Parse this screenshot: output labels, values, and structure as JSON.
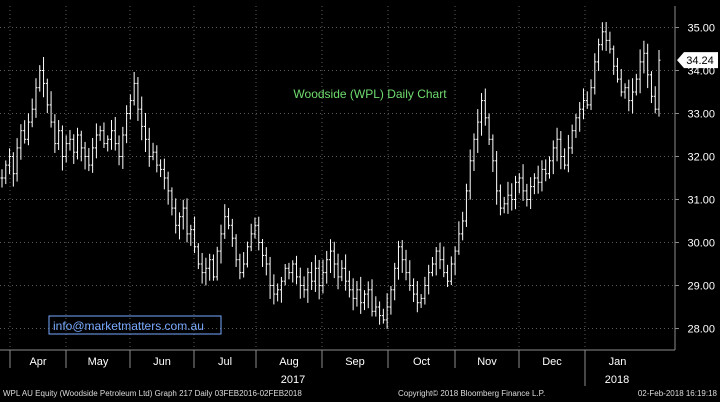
{
  "chart_data": {
    "type": "ohlc",
    "title": "Woodside (WPL) Daily Chart",
    "watermark": "info@marketmatters.com.au",
    "last_price_label": "34.24",
    "last_price": 34.24,
    "ylim": [
      27.5,
      35.5
    ],
    "y_ticks": [
      28.0,
      29.0,
      30.0,
      31.0,
      32.0,
      33.0,
      34.0,
      35.0
    ],
    "y_tick_labels": [
      "28.00",
      "29.00",
      "30.00",
      "31.00",
      "32.00",
      "33.00",
      "34.00",
      "35.00"
    ],
    "month_labels": [
      "Apr",
      "May",
      "Jun",
      "Jul",
      "Aug",
      "Sep",
      "Oct",
      "Nov",
      "Dec",
      "Jan"
    ],
    "year_labels": [
      "2017",
      "2018"
    ],
    "grid": true,
    "colors": {
      "background": "#000000",
      "bars": "#ffffff",
      "grid": "#5a5a5a",
      "title": "#6fdc6f",
      "watermark": "#79a9ff",
      "axis": "#8c8c8c"
    },
    "x_note": "one bar per trading day, late Mar 2017 to 2 Feb 2018",
    "closes": [
      31.5,
      31.8,
      32.0,
      31.6,
      32.2,
      32.6,
      32.4,
      32.8,
      33.1,
      33.6,
      34.0,
      33.7,
      33.2,
      32.8,
      32.3,
      32.6,
      32.0,
      32.3,
      32.4,
      32.1,
      32.5,
      32.2,
      32.0,
      31.8,
      32.2,
      32.5,
      32.6,
      32.3,
      32.4,
      32.6,
      32.3,
      32.0,
      32.5,
      33.0,
      33.3,
      33.7,
      33.1,
      32.7,
      32.4,
      32.0,
      32.1,
      31.8,
      31.7,
      31.5,
      31.2,
      30.8,
      30.4,
      30.6,
      30.8,
      30.2,
      30.3,
      29.9,
      29.5,
      29.3,
      29.4,
      29.6,
      29.2,
      29.8,
      30.2,
      30.6,
      30.4,
      30.1,
      29.6,
      29.3,
      29.5,
      29.9,
      30.2,
      30.4,
      30.0,
      29.7,
      29.5,
      29.0,
      28.8,
      28.9,
      29.1,
      29.4,
      29.3,
      29.5,
      29.2,
      29.0,
      28.9,
      29.3,
      29.1,
      29.4,
      29.0,
      29.3,
      29.6,
      29.8,
      29.5,
      29.2,
      29.4,
      29.1,
      28.9,
      28.7,
      28.9,
      28.6,
      28.8,
      28.9,
      28.4,
      28.5,
      28.3,
      28.2,
      28.5,
      28.9,
      29.4,
      29.9,
      29.6,
      29.3,
      29.0,
      28.8,
      28.6,
      28.7,
      29.0,
      29.3,
      29.5,
      29.8,
      29.6,
      29.3,
      29.1,
      29.5,
      29.8,
      30.2,
      30.5,
      31.2,
      31.9,
      32.4,
      32.8,
      33.3,
      32.9,
      32.4,
      31.9,
      31.2,
      30.8,
      30.9,
      31.1,
      31.0,
      31.4,
      31.5,
      31.2,
      31.0,
      31.3,
      31.5,
      31.4,
      31.7,
      31.6,
      31.9,
      32.2,
      32.4,
      32.0,
      31.8,
      32.2,
      32.6,
      32.9,
      33.1,
      33.3,
      33.2,
      33.6,
      34.2,
      34.6,
      34.9,
      34.7,
      34.5,
      34.1,
      33.8,
      33.5,
      33.6,
      33.3,
      33.5,
      33.8,
      34.2,
      34.4,
      33.9,
      33.4,
      33.1,
      34.24
    ]
  },
  "footer": {
    "left": "WPL AU Equity (Woodside Petroleum Ltd) Graph 217  Daily 03FEB2016-02FEB2018",
    "center": "Copyright© 2018 Bloomberg Finance L.P.",
    "right": "02-Feb-2018 16:19:18"
  }
}
